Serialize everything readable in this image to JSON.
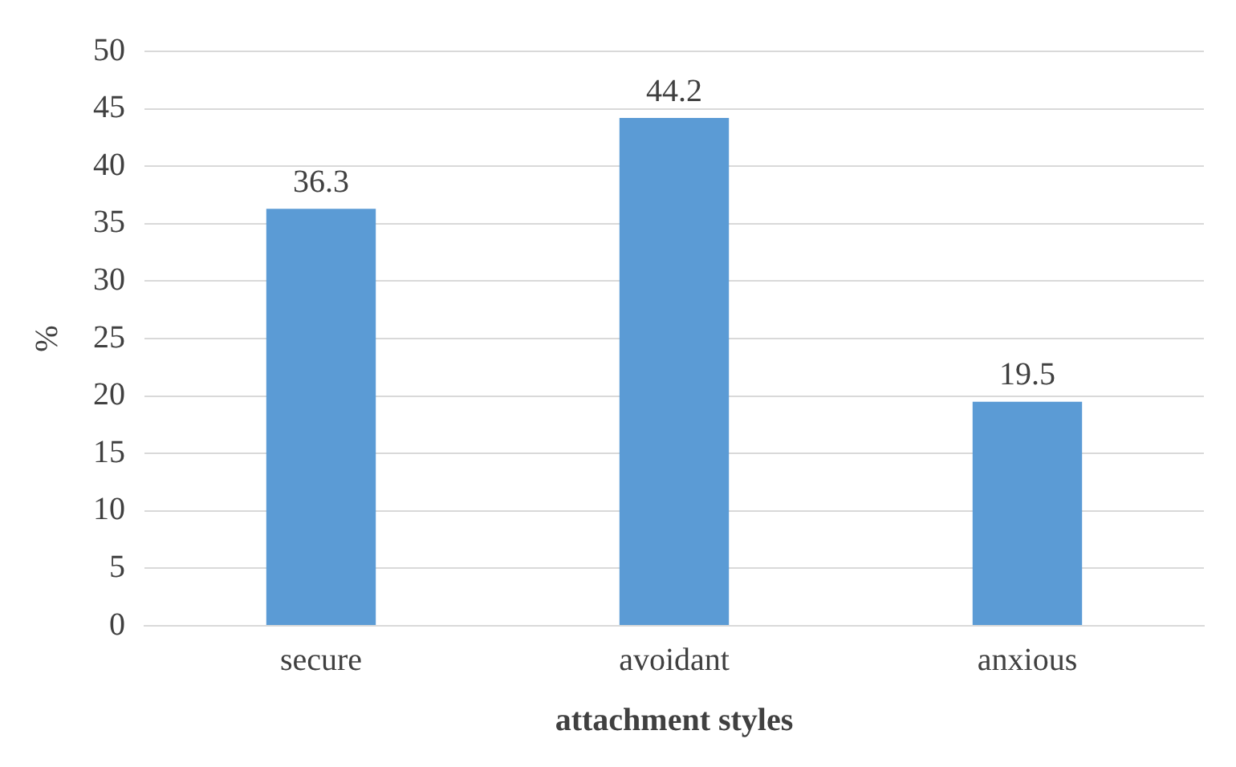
{
  "chart_data": {
    "type": "bar",
    "xlabel": "attachment styles",
    "ylabel": "%",
    "categories": [
      "secure",
      "avoidant",
      "anxious"
    ],
    "values": [
      36.3,
      44.2,
      19.5
    ],
    "color": "#5b9bd5",
    "ylim": [
      0,
      50
    ],
    "yticks": [
      0,
      5,
      10,
      15,
      20,
      25,
      30,
      35,
      40,
      45,
      50
    ],
    "grid": "y",
    "data_labels": true,
    "legend": false
  }
}
